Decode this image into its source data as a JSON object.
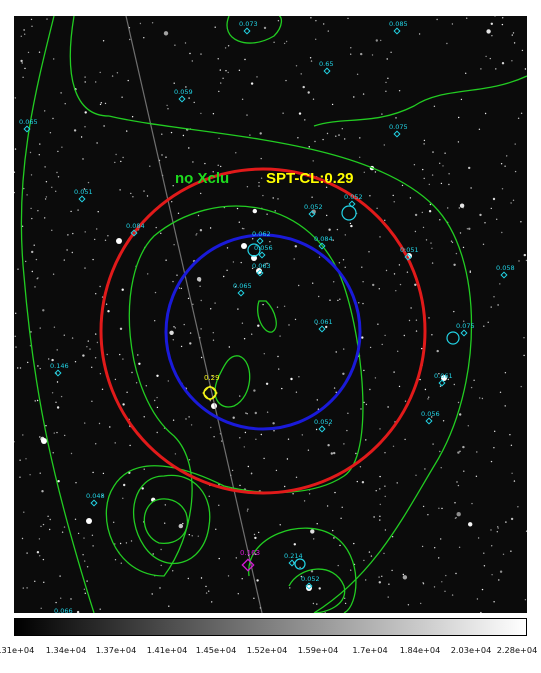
{
  "annotations": {
    "no_xclu": "no Xclu",
    "spt_cl": "SPT-CL:0.29"
  },
  "colors": {
    "sky": "#0b0b0b",
    "contour": "#22cc22",
    "red_circle": "#e11a1a",
    "blue_circle": "#1a1ad9",
    "cyan_marker": "#22d4e6",
    "yellow_marker": "#f2f21a",
    "magenta_marker": "#d61ad6",
    "green_label": "#1edc1e",
    "yellow_label": "#ffff00"
  },
  "markers": {
    "cyan": [
      "0.073",
      "0.65",
      "0.059",
      "0.065",
      "0.075",
      "0.051",
      "0.052",
      "0.084",
      "0.062",
      "0.052",
      "0.084",
      "0.061",
      "0.058",
      "0.065",
      "0.056",
      "0.061",
      "0.075",
      "0.146",
      "0.051",
      "0.056",
      "0.052",
      "0.048",
      "0.214",
      "0.052",
      "0.063",
      "0.085",
      "0.066"
    ],
    "yellow": [
      "0.29"
    ],
    "magenta": [
      "0.163"
    ]
  },
  "colorbar": {
    "ticks": [
      "1.31e+04",
      "1.34e+04",
      "1.37e+04",
      "1.41e+04",
      "1.45e+04",
      "1.52e+04",
      "1.59e+04",
      "1.7e+04",
      "1.84e+04",
      "2.03e+04",
      "2.28e+04"
    ]
  }
}
